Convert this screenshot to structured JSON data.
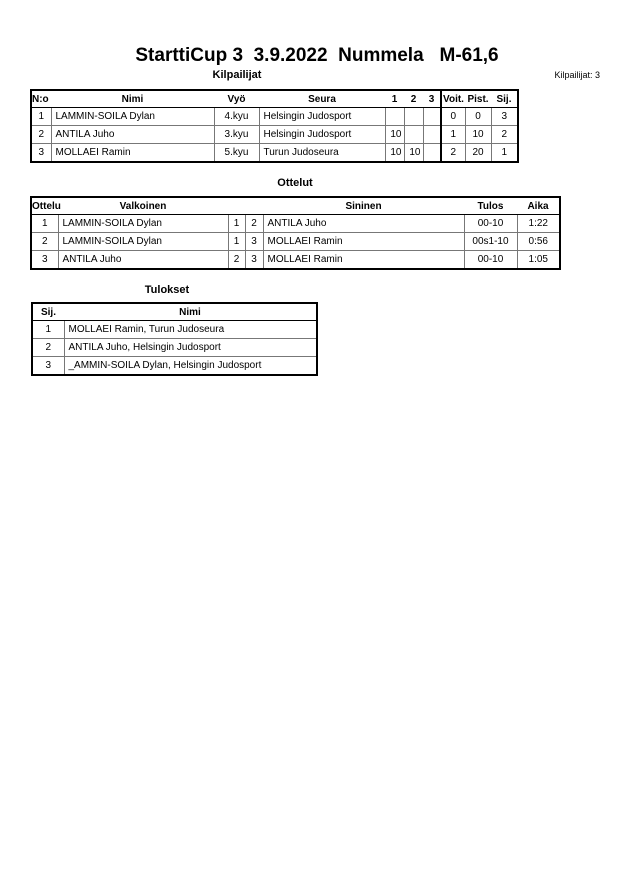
{
  "title": "StarttiCup 3  3.9.2022  Nummela   M-61,6",
  "competitors": {
    "heading": "Kilpailijat",
    "count_label": "Kilpailijat: 3",
    "columns": [
      "N:o",
      "Nimi",
      "Vyö",
      "Seura",
      "1",
      "2",
      "3",
      "Voit.",
      "Pist.",
      "Sij."
    ],
    "rows": [
      [
        "1",
        "LAMMIN-SOILA Dylan",
        "4.kyu",
        "Helsingin Judosport",
        "",
        "",
        "",
        "0",
        "0",
        "3"
      ],
      [
        "2",
        "ANTILA Juho",
        "3.kyu",
        "Helsingin Judosport",
        "10",
        "",
        "",
        "1",
        "10",
        "2"
      ],
      [
        "3",
        "MOLLAEI Ramin",
        "5.kyu",
        "Turun Judoseura",
        "10",
        "10",
        "",
        "2",
        "20",
        "1"
      ]
    ]
  },
  "matches": {
    "heading": "Ottelut",
    "columns": [
      "Ottelu",
      "Valkoinen",
      "Sininen",
      "Tulos",
      "Aika"
    ],
    "rows": [
      [
        "1",
        "LAMMIN-SOILA Dylan",
        "1",
        "2",
        "ANTILA Juho",
        "00-10",
        "1:22"
      ],
      [
        "2",
        "LAMMIN-SOILA Dylan",
        "1",
        "3",
        "MOLLAEI Ramin",
        "00s1-10",
        "0:56"
      ],
      [
        "3",
        "ANTILA Juho",
        "2",
        "3",
        "MOLLAEI Ramin",
        "00-10",
        "1:05"
      ]
    ]
  },
  "results": {
    "heading": "Tulokset",
    "columns": [
      "Sij.",
      "Nimi"
    ],
    "rows": [
      [
        "1",
        "MOLLAEI Ramin, Turun Judoseura"
      ],
      [
        "2",
        "ANTILA Juho, Helsingin Judosport"
      ],
      [
        "3",
        "_AMMIN-SOILA Dylan, Helsingin Judosport"
      ]
    ]
  }
}
